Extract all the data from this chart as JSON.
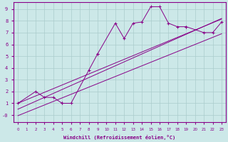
{
  "xlabel": "Windchill (Refroidissement éolien,°C)",
  "background_color": "#cce8e8",
  "line_color": "#880088",
  "grid_color": "#aacccc",
  "scatter_segments": [
    {
      "x": [
        0,
        2,
        3,
        4,
        5
      ],
      "y": [
        1.0,
        2.0,
        1.5,
        1.5,
        1.0
      ]
    },
    {
      "x": [
        5,
        6,
        8,
        9
      ],
      "y": [
        1.0,
        1.0,
        3.8,
        5.2
      ]
    },
    {
      "x": [
        9,
        11,
        12,
        13,
        14,
        15,
        16,
        17,
        18,
        19
      ],
      "y": [
        5.2,
        7.8,
        6.5,
        7.8,
        7.9,
        9.2,
        9.2,
        7.8,
        7.5,
        7.5
      ]
    },
    {
      "x": [
        19,
        21,
        22,
        23
      ],
      "y": [
        7.5,
        7.0,
        7.0,
        7.9
      ]
    }
  ],
  "line_lower": {
    "x0": 0,
    "y0": -0.05,
    "x1": 23,
    "y1": 6.9
  },
  "line_upper": {
    "x0": 0,
    "y0": 0.5,
    "x1": 23,
    "y1": 8.2
  },
  "line_mid": {
    "x0": 0,
    "y0": 1.0,
    "x1": 23,
    "y1": 8.15
  },
  "xlim": [
    -0.5,
    23.5
  ],
  "ylim": [
    -0.6,
    9.6
  ],
  "xticks": [
    0,
    1,
    2,
    3,
    4,
    5,
    6,
    7,
    8,
    9,
    10,
    11,
    12,
    13,
    14,
    15,
    16,
    17,
    18,
    19,
    20,
    21,
    22,
    23
  ],
  "yticks": [
    0,
    1,
    2,
    3,
    4,
    5,
    6,
    7,
    8,
    9
  ],
  "ytick_labels": [
    "-0",
    "1",
    "2",
    "3",
    "4",
    "5",
    "6",
    "7",
    "8",
    "9"
  ]
}
